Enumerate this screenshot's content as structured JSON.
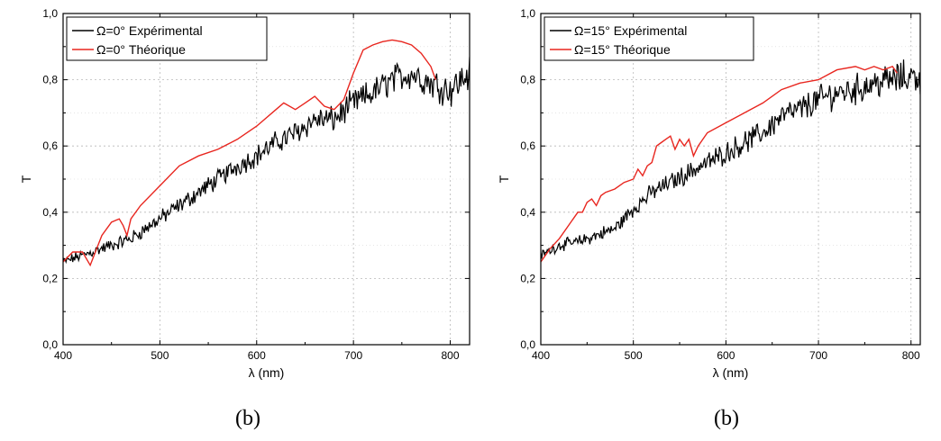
{
  "chart_data": [
    {
      "type": "line",
      "caption": "(b)",
      "xlabel": "λ (nm)",
      "ylabel": "T",
      "xlim": [
        400,
        820
      ],
      "ylim": [
        0.0,
        1.0
      ],
      "x_ticks": [
        400,
        500,
        600,
        700,
        800
      ],
      "y_tick_labels": [
        "0,0",
        "0,2",
        "0,4",
        "0,6",
        "0,8",
        "1,0"
      ],
      "x_tick_labels": [
        "400",
        "500",
        "600",
        "700",
        "800"
      ],
      "grid": true,
      "legend_position": "top-left",
      "series": [
        {
          "name": "Ω=0° Expérimental",
          "color": "#000000",
          "noisy": true,
          "x": [
            400,
            410,
            420,
            430,
            440,
            450,
            460,
            470,
            480,
            490,
            500,
            520,
            540,
            560,
            580,
            600,
            620,
            640,
            660,
            680,
            700,
            720,
            740,
            760,
            780,
            800,
            820
          ],
          "y": [
            0.25,
            0.26,
            0.27,
            0.28,
            0.29,
            0.3,
            0.31,
            0.32,
            0.34,
            0.36,
            0.38,
            0.42,
            0.46,
            0.5,
            0.54,
            0.57,
            0.61,
            0.64,
            0.68,
            0.68,
            0.73,
            0.76,
            0.8,
            0.82,
            0.79,
            0.77,
            0.82
          ]
        },
        {
          "name": "Ω=0° Théorique",
          "color": "#e8261f",
          "noisy": false,
          "x": [
            400,
            410,
            420,
            428,
            440,
            450,
            458,
            462,
            466,
            470,
            480,
            500,
            520,
            540,
            560,
            580,
            600,
            620,
            628,
            640,
            650,
            660,
            670,
            680,
            690,
            700,
            710,
            720,
            730,
            740,
            750,
            760,
            770,
            780,
            785
          ],
          "y": [
            0.25,
            0.28,
            0.28,
            0.24,
            0.33,
            0.37,
            0.38,
            0.36,
            0.33,
            0.38,
            0.42,
            0.48,
            0.54,
            0.57,
            0.59,
            0.62,
            0.66,
            0.71,
            0.73,
            0.71,
            0.73,
            0.75,
            0.72,
            0.71,
            0.74,
            0.82,
            0.89,
            0.905,
            0.915,
            0.92,
            0.915,
            0.905,
            0.88,
            0.84,
            0.8
          ]
        }
      ]
    },
    {
      "type": "line",
      "caption": "(b)",
      "xlabel": "λ (nm)",
      "ylabel": "T",
      "xlim": [
        400,
        810
      ],
      "ylim": [
        0.0,
        1.0
      ],
      "x_ticks": [
        400,
        500,
        600,
        700,
        800
      ],
      "y_tick_labels": [
        "0,0",
        "0,2",
        "0,4",
        "0,6",
        "0,8",
        "1,0"
      ],
      "x_tick_labels": [
        "400",
        "500",
        "600",
        "700",
        "800"
      ],
      "grid": true,
      "legend_position": "top-left",
      "series": [
        {
          "name": "Ω=15° Expérimental",
          "color": "#000000",
          "noisy": true,
          "x": [
            400,
            420,
            440,
            460,
            480,
            500,
            520,
            540,
            560,
            580,
            600,
            620,
            640,
            660,
            680,
            700,
            720,
            740,
            760,
            780,
            800,
            810
          ],
          "y": [
            0.27,
            0.3,
            0.31,
            0.33,
            0.35,
            0.41,
            0.46,
            0.49,
            0.52,
            0.55,
            0.58,
            0.61,
            0.64,
            0.69,
            0.71,
            0.74,
            0.76,
            0.77,
            0.79,
            0.8,
            0.81,
            0.81
          ]
        },
        {
          "name": "Ω=15° Théorique",
          "color": "#e8261f",
          "noisy": false,
          "x": [
            400,
            410,
            420,
            430,
            440,
            445,
            450,
            455,
            460,
            465,
            470,
            480,
            490,
            500,
            505,
            510,
            515,
            520,
            525,
            530,
            535,
            540,
            545,
            550,
            555,
            560,
            565,
            570,
            580,
            600,
            620,
            640,
            660,
            680,
            700,
            720,
            740,
            750,
            760,
            770,
            780,
            785
          ],
          "y": [
            0.25,
            0.29,
            0.32,
            0.36,
            0.4,
            0.4,
            0.43,
            0.44,
            0.42,
            0.45,
            0.46,
            0.47,
            0.49,
            0.5,
            0.53,
            0.51,
            0.54,
            0.55,
            0.6,
            0.61,
            0.62,
            0.63,
            0.59,
            0.62,
            0.6,
            0.62,
            0.57,
            0.6,
            0.64,
            0.67,
            0.7,
            0.73,
            0.77,
            0.79,
            0.8,
            0.83,
            0.84,
            0.83,
            0.84,
            0.83,
            0.84,
            0.82
          ]
        }
      ]
    }
  ]
}
